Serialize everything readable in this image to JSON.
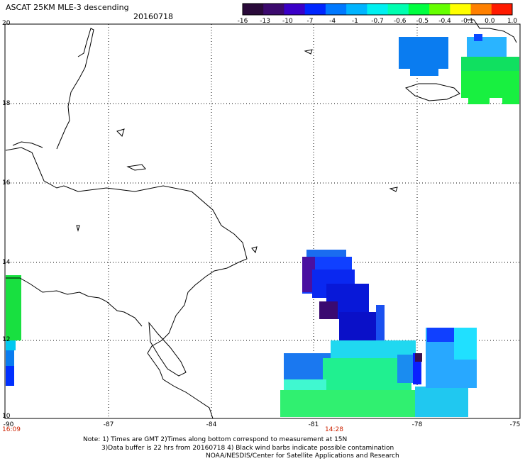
{
  "header": {
    "title": "ASCAT 25KM MLE-3 descending",
    "date": "20160718"
  },
  "colorbar": {
    "labels": [
      "-16",
      "-13",
      "-10",
      "-7",
      "-4",
      "-1",
      "-0.7",
      "-0.6",
      "-0.5",
      "-0.4",
      "-0.1",
      "0.0",
      "1.0"
    ],
    "colors": [
      "#2a0a3a",
      "#3c0a6e",
      "#3a00c8",
      "#0026ff",
      "#0078ff",
      "#00b4ff",
      "#00f0f0",
      "#00ffb0",
      "#00ff40",
      "#66ff00",
      "#ffff00",
      "#ff8000",
      "#ff1a00"
    ]
  },
  "map": {
    "lat_labels": [
      "20",
      "18",
      "16",
      "14",
      "12",
      "10"
    ],
    "lon_labels": [
      "-90",
      "-87",
      "-84",
      "-81",
      "-78",
      "-75"
    ],
    "time_labels": [
      "16:09",
      "14:28"
    ]
  },
  "footer": {
    "line1": "Note: 1) Times are GMT 2)Times along bottom correspond to measurement at 15N",
    "line2": "3)Data buffer is 22 hrs from 20160718 4) Black wind barbs indicate possible contamination",
    "line3": "NOAA/NESDIS/Center for Satellite Applications and Research"
  }
}
